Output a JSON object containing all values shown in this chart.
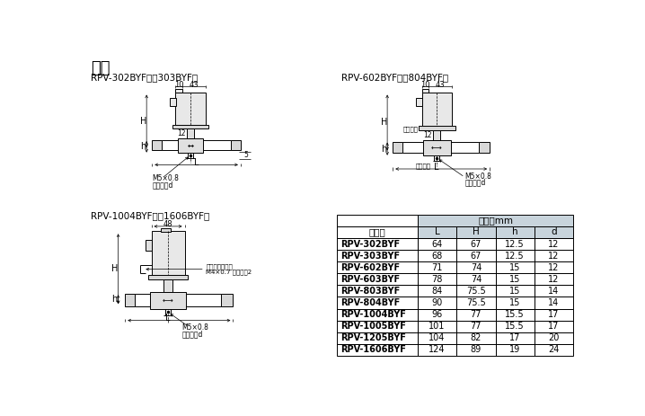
{
  "title": "尺寸",
  "diagram1_title": "RPV-302BYF型，303BYF型",
  "diagram2_title": "RPV-602BYF型～804BYF型",
  "diagram3_title": "RPV-1004BYF型～1606BYF型",
  "table_unit": "单位：mm",
  "table_header_col": "型　号",
  "table_headers": [
    "L",
    "H",
    "h",
    "d"
  ],
  "table_rows": [
    [
      "RPV-302BYF",
      "64",
      "67",
      "12.5",
      "12"
    ],
    [
      "RPV-303BYF",
      "68",
      "67",
      "12.5",
      "12"
    ],
    [
      "RPV-602BYF",
      "71",
      "74",
      "15",
      "12"
    ],
    [
      "RPV-603BYF",
      "78",
      "74",
      "15",
      "12"
    ],
    [
      "RPV-803BYF",
      "84",
      "75.5",
      "15",
      "14"
    ],
    [
      "RPV-804BYF",
      "90",
      "75.5",
      "15",
      "14"
    ],
    [
      "RPV-1004BYF",
      "96",
      "77",
      "15.5",
      "17"
    ],
    [
      "RPV-1005BYF",
      "101",
      "77",
      "15.5",
      "17"
    ],
    [
      "RPV-1205BYF",
      "104",
      "82",
      "17",
      "20"
    ],
    [
      "RPV-1606BYF",
      "124",
      "89",
      "19",
      "24"
    ]
  ],
  "bg_color": "#ffffff",
  "table_header_bg": "#c8d4dc",
  "table_unit_bg": "#c8d4dc",
  "label_10": "10",
  "label_43": "43",
  "label_48": "48",
  "label_12": "12",
  "label_H": "H",
  "label_h": "h",
  "label_L": "L",
  "label_5": "5",
  "label_m5": "M5×0.8",
  "label_screw": "联丝长度d",
  "label_flow1": "流向表示",
  "label_flow2": "流向表示",
  "label_ground": "接地安装螺纹孔",
  "label_ground2": "M4×0.7 螺丝长制2"
}
